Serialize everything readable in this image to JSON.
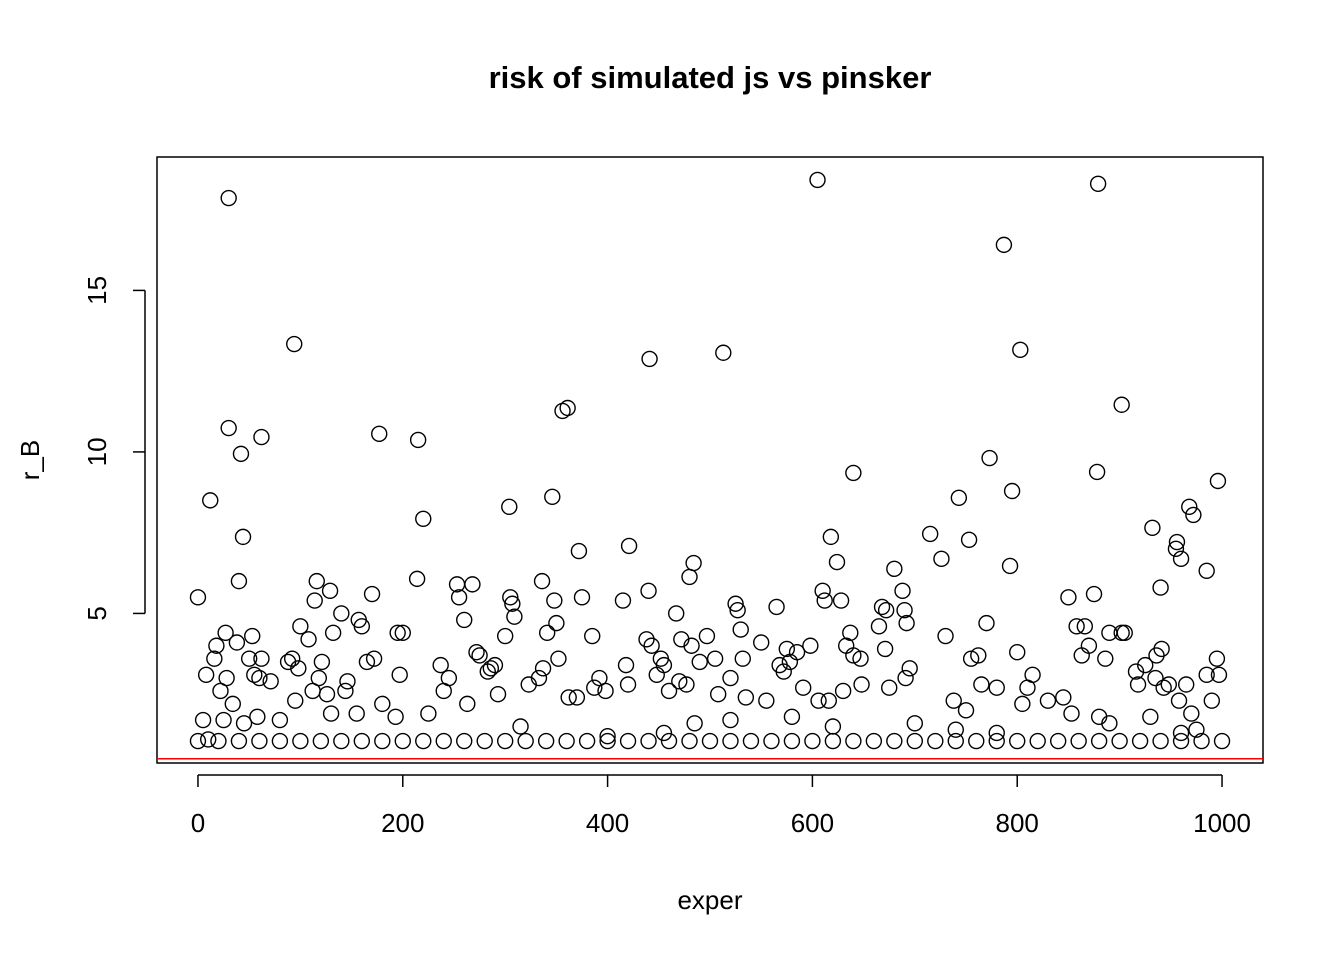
{
  "chart_data": {
    "type": "scatter",
    "title": "risk of simulated js vs pinsker",
    "x_label": "exper",
    "y_label": "r_B",
    "xlim": [
      -40,
      1040
    ],
    "ylim": [
      0.37,
      19.13
    ],
    "xticks": [
      0,
      200,
      400,
      600,
      800,
      1000
    ],
    "yticks": [
      5,
      10,
      15
    ],
    "color": "#000000",
    "hline": 0.5,
    "hline_color": "#ff0000",
    "x": [
      30,
      94,
      12,
      30,
      42,
      44,
      40,
      62,
      0,
      177,
      215,
      220,
      214,
      304,
      346,
      356,
      361,
      372,
      421,
      441,
      513,
      480,
      484,
      605,
      618,
      624,
      640,
      680,
      715,
      726,
      743,
      753,
      773,
      787,
      795,
      803,
      879,
      878,
      902,
      793,
      932,
      955,
      956,
      960,
      968,
      972,
      996,
      985,
      8,
      16,
      18,
      22,
      25,
      27,
      28,
      34,
      38,
      50,
      53,
      55,
      60,
      62,
      71,
      80,
      88,
      92,
      95,
      100,
      98,
      108,
      112,
      114,
      116,
      118,
      121,
      126,
      129,
      132,
      140,
      144,
      146,
      155,
      157,
      160,
      165,
      170,
      172,
      180,
      193,
      195,
      200,
      197,
      237,
      240,
      245,
      253,
      255,
      260,
      263,
      268,
      272,
      275,
      283,
      286,
      290,
      293,
      300,
      305,
      307,
      309,
      323,
      333,
      336,
      337,
      341,
      348,
      350,
      352,
      362,
      370,
      375,
      385,
      387,
      392,
      398,
      415,
      418,
      420,
      438,
      440,
      443,
      448,
      452,
      455,
      460,
      467,
      470,
      472,
      477,
      482,
      490,
      497,
      505,
      508,
      520,
      525,
      527,
      530,
      532,
      535,
      550,
      555,
      565,
      568,
      572,
      575,
      578,
      585,
      591,
      598,
      606,
      610,
      612,
      616,
      628,
      630,
      633,
      637,
      640,
      647,
      648,
      665,
      668,
      672,
      671,
      675,
      688,
      690,
      692,
      695,
      691,
      730,
      738,
      750,
      755,
      762,
      765,
      770,
      780,
      800,
      805,
      810,
      815,
      830,
      845,
      850,
      853,
      858,
      866,
      863,
      870,
      875,
      880,
      886,
      890,
      902,
      905,
      916,
      918,
      925,
      935,
      936,
      940,
      941,
      943,
      948,
      958,
      965,
      970,
      985,
      990,
      995,
      997,
      5,
      10,
      45,
      58,
      130,
      225,
      315,
      400,
      455,
      485,
      520,
      580,
      620,
      700,
      740,
      780,
      890,
      930,
      960,
      975,
      0,
      20,
      40,
      60,
      80,
      100,
      120,
      140,
      160,
      180,
      200,
      220,
      240,
      260,
      280,
      300,
      320,
      340,
      360,
      380,
      400,
      420,
      440,
      460,
      480,
      500,
      520,
      540,
      560,
      580,
      600,
      620,
      640,
      660,
      680,
      700,
      720,
      740,
      760,
      780,
      800,
      820,
      840,
      860,
      880,
      900,
      920,
      940,
      960,
      980,
      1000
    ],
    "values": [
      17.86,
      13.34,
      8.5,
      10.74,
      9.94,
      7.37,
      6.0,
      10.46,
      5.5,
      10.56,
      10.37,
      7.93,
      6.07,
      8.3,
      8.61,
      11.27,
      11.36,
      6.93,
      7.09,
      12.88,
      13.07,
      6.13,
      6.56,
      18.42,
      7.37,
      6.59,
      9.35,
      6.38,
      7.46,
      6.69,
      8.58,
      7.28,
      9.81,
      16.41,
      8.79,
      13.16,
      18.3,
      9.38,
      11.46,
      6.47,
      7.65,
      7.0,
      7.21,
      6.69,
      8.3,
      8.05,
      9.1,
      6.32,
      3.1,
      3.6,
      4.0,
      2.6,
      1.7,
      4.4,
      3.0,
      2.2,
      4.1,
      3.6,
      4.3,
      3.1,
      3.0,
      3.6,
      2.9,
      1.7,
      3.5,
      3.6,
      2.3,
      4.6,
      3.3,
      4.2,
      2.6,
      5.4,
      6.0,
      3.0,
      3.5,
      2.5,
      5.7,
      4.4,
      5.0,
      2.6,
      2.9,
      1.9,
      4.8,
      4.6,
      3.5,
      5.6,
      3.6,
      2.2,
      1.8,
      4.4,
      4.4,
      3.1,
      3.4,
      2.6,
      3.0,
      5.9,
      5.5,
      4.8,
      2.2,
      5.9,
      3.8,
      3.7,
      3.2,
      3.3,
      3.4,
      2.5,
      4.3,
      5.5,
      5.3,
      4.9,
      2.8,
      3.0,
      6.0,
      3.3,
      4.4,
      5.4,
      4.7,
      3.6,
      2.4,
      2.4,
      5.5,
      4.3,
      2.7,
      3.0,
      2.6,
      5.4,
      3.4,
      2.8,
      4.2,
      5.7,
      4.0,
      3.1,
      3.6,
      3.4,
      2.6,
      5.0,
      2.9,
      4.2,
      2.8,
      4.0,
      3.5,
      4.3,
      3.6,
      2.5,
      3.0,
      5.3,
      5.1,
      4.5,
      3.6,
      2.4,
      4.1,
      2.3,
      5.2,
      3.4,
      3.2,
      3.9,
      3.5,
      3.8,
      2.7,
      4.0,
      2.3,
      5.7,
      5.4,
      2.3,
      5.4,
      2.6,
      4.0,
      4.4,
      3.7,
      3.6,
      2.8,
      4.6,
      5.2,
      5.1,
      3.9,
      2.7,
      5.7,
      5.1,
      4.7,
      3.3,
      3.0,
      4.3,
      2.3,
      2.0,
      3.6,
      3.7,
      2.8,
      4.7,
      2.7,
      3.8,
      2.2,
      2.7,
      3.1,
      2.3,
      2.4,
      5.5,
      1.9,
      4.6,
      4.6,
      3.7,
      4.0,
      5.6,
      1.8,
      3.6,
      4.4,
      4.4,
      4.4,
      3.2,
      2.8,
      3.4,
      3.0,
      3.7,
      5.8,
      3.9,
      2.7,
      2.8,
      2.3,
      2.8,
      1.9,
      3.1,
      2.3,
      3.6,
      3.1,
      1.7,
      1.1,
      1.6,
      1.8,
      1.9,
      1.9,
      1.5,
      1.2,
      1.3,
      1.6,
      1.7,
      1.8,
      1.5,
      1.6,
      1.4,
      1.3,
      1.6,
      1.8,
      1.3,
      1.4,
      1.05,
      1.05,
      1.05,
      1.05,
      1.05,
      1.05,
      1.05,
      1.05,
      1.05,
      1.05,
      1.05,
      1.05,
      1.05,
      1.05,
      1.05,
      1.05,
      1.05,
      1.05,
      1.05,
      1.05,
      1.05,
      1.05,
      1.05,
      1.05,
      1.05,
      1.05,
      1.05,
      1.05,
      1.05,
      1.05,
      1.05,
      1.05,
      1.05,
      1.05,
      1.05,
      1.05,
      1.05,
      1.05,
      1.05,
      1.05,
      1.05,
      1.05,
      1.05,
      1.05,
      1.05,
      1.05,
      1.05,
      1.05,
      1.05,
      1.05,
      1.05
    ]
  }
}
